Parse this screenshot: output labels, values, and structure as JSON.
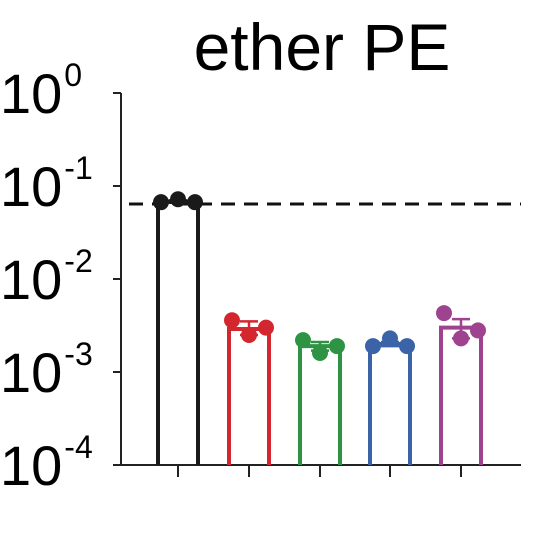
{
  "chart_data": {
    "type": "bar",
    "title": "ether PE",
    "xlabel": "",
    "ylabel": "",
    "y_scale": "log",
    "ylim": [
      0.0001,
      1
    ],
    "y_ticks": [
      {
        "base": "10",
        "exp": "0",
        "value": 1
      },
      {
        "base": "10",
        "exp": "-1",
        "value": 0.1
      },
      {
        "base": "10",
        "exp": "-2",
        "value": 0.01
      },
      {
        "base": "10",
        "exp": "-3",
        "value": 0.001
      },
      {
        "base": "10",
        "exp": "-4",
        "value": 0.0001
      }
    ],
    "categories": [
      "",
      "",
      "",
      "",
      ""
    ],
    "reference_line": 0.064,
    "series": [
      {
        "color": "#1a1a1a",
        "value": 0.068,
        "points": [
          0.067,
          0.072,
          0.067
        ],
        "err": [
          0.066,
          0.07
        ]
      },
      {
        "color": "#d4262e",
        "value": 0.0029,
        "points": [
          0.0036,
          0.0025,
          0.003
        ],
        "err": [
          0.0025,
          0.0035
        ]
      },
      {
        "color": "#2e9444",
        "value": 0.0019,
        "points": [
          0.0022,
          0.0016,
          0.0019
        ],
        "err": [
          0.0017,
          0.0021
        ]
      },
      {
        "color": "#3b63a8",
        "value": 0.002,
        "points": [
          0.0019,
          0.0023,
          0.0019
        ],
        "err": [
          0.0019,
          0.0021
        ]
      },
      {
        "color": "#a0438f",
        "value": 0.003,
        "points": [
          0.0043,
          0.0023,
          0.0028
        ],
        "err": [
          0.0023,
          0.0037
        ]
      }
    ]
  }
}
